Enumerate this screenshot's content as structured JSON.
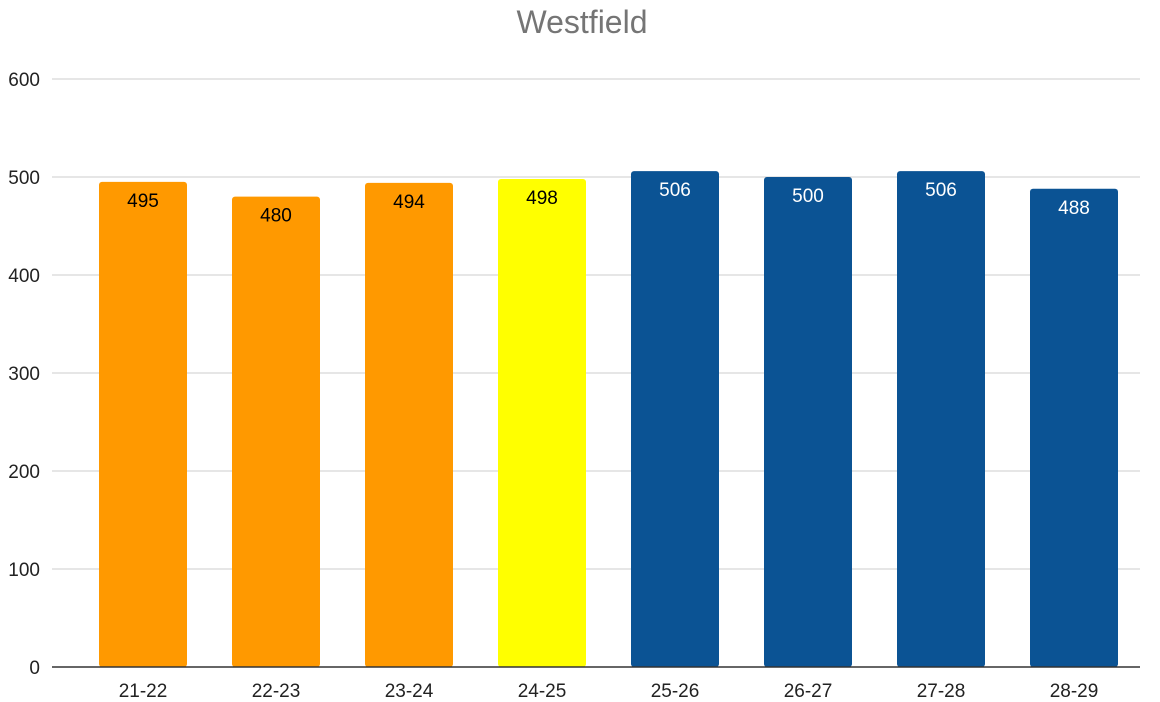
{
  "chart_data": {
    "type": "bar",
    "title": "Westfield",
    "xlabel": "",
    "ylabel": "",
    "ylim": [
      0,
      600
    ],
    "yticks": [
      0,
      100,
      200,
      300,
      400,
      500,
      600
    ],
    "grid": true,
    "legend": "none",
    "categories": [
      "21-22",
      "22-23",
      "23-24",
      "24-25",
      "25-26",
      "26-27",
      "27-28",
      "28-29"
    ],
    "values": [
      495,
      480,
      494,
      498,
      506,
      500,
      506,
      488
    ],
    "bar_colors": [
      "#ff9900",
      "#ff9900",
      "#ff9900",
      "#ffff00",
      "#0b5394",
      "#0b5394",
      "#0b5394",
      "#0b5394"
    ],
    "label_colors": [
      "#000000",
      "#000000",
      "#000000",
      "#000000",
      "#ffffff",
      "#ffffff",
      "#ffffff",
      "#ffffff"
    ]
  }
}
